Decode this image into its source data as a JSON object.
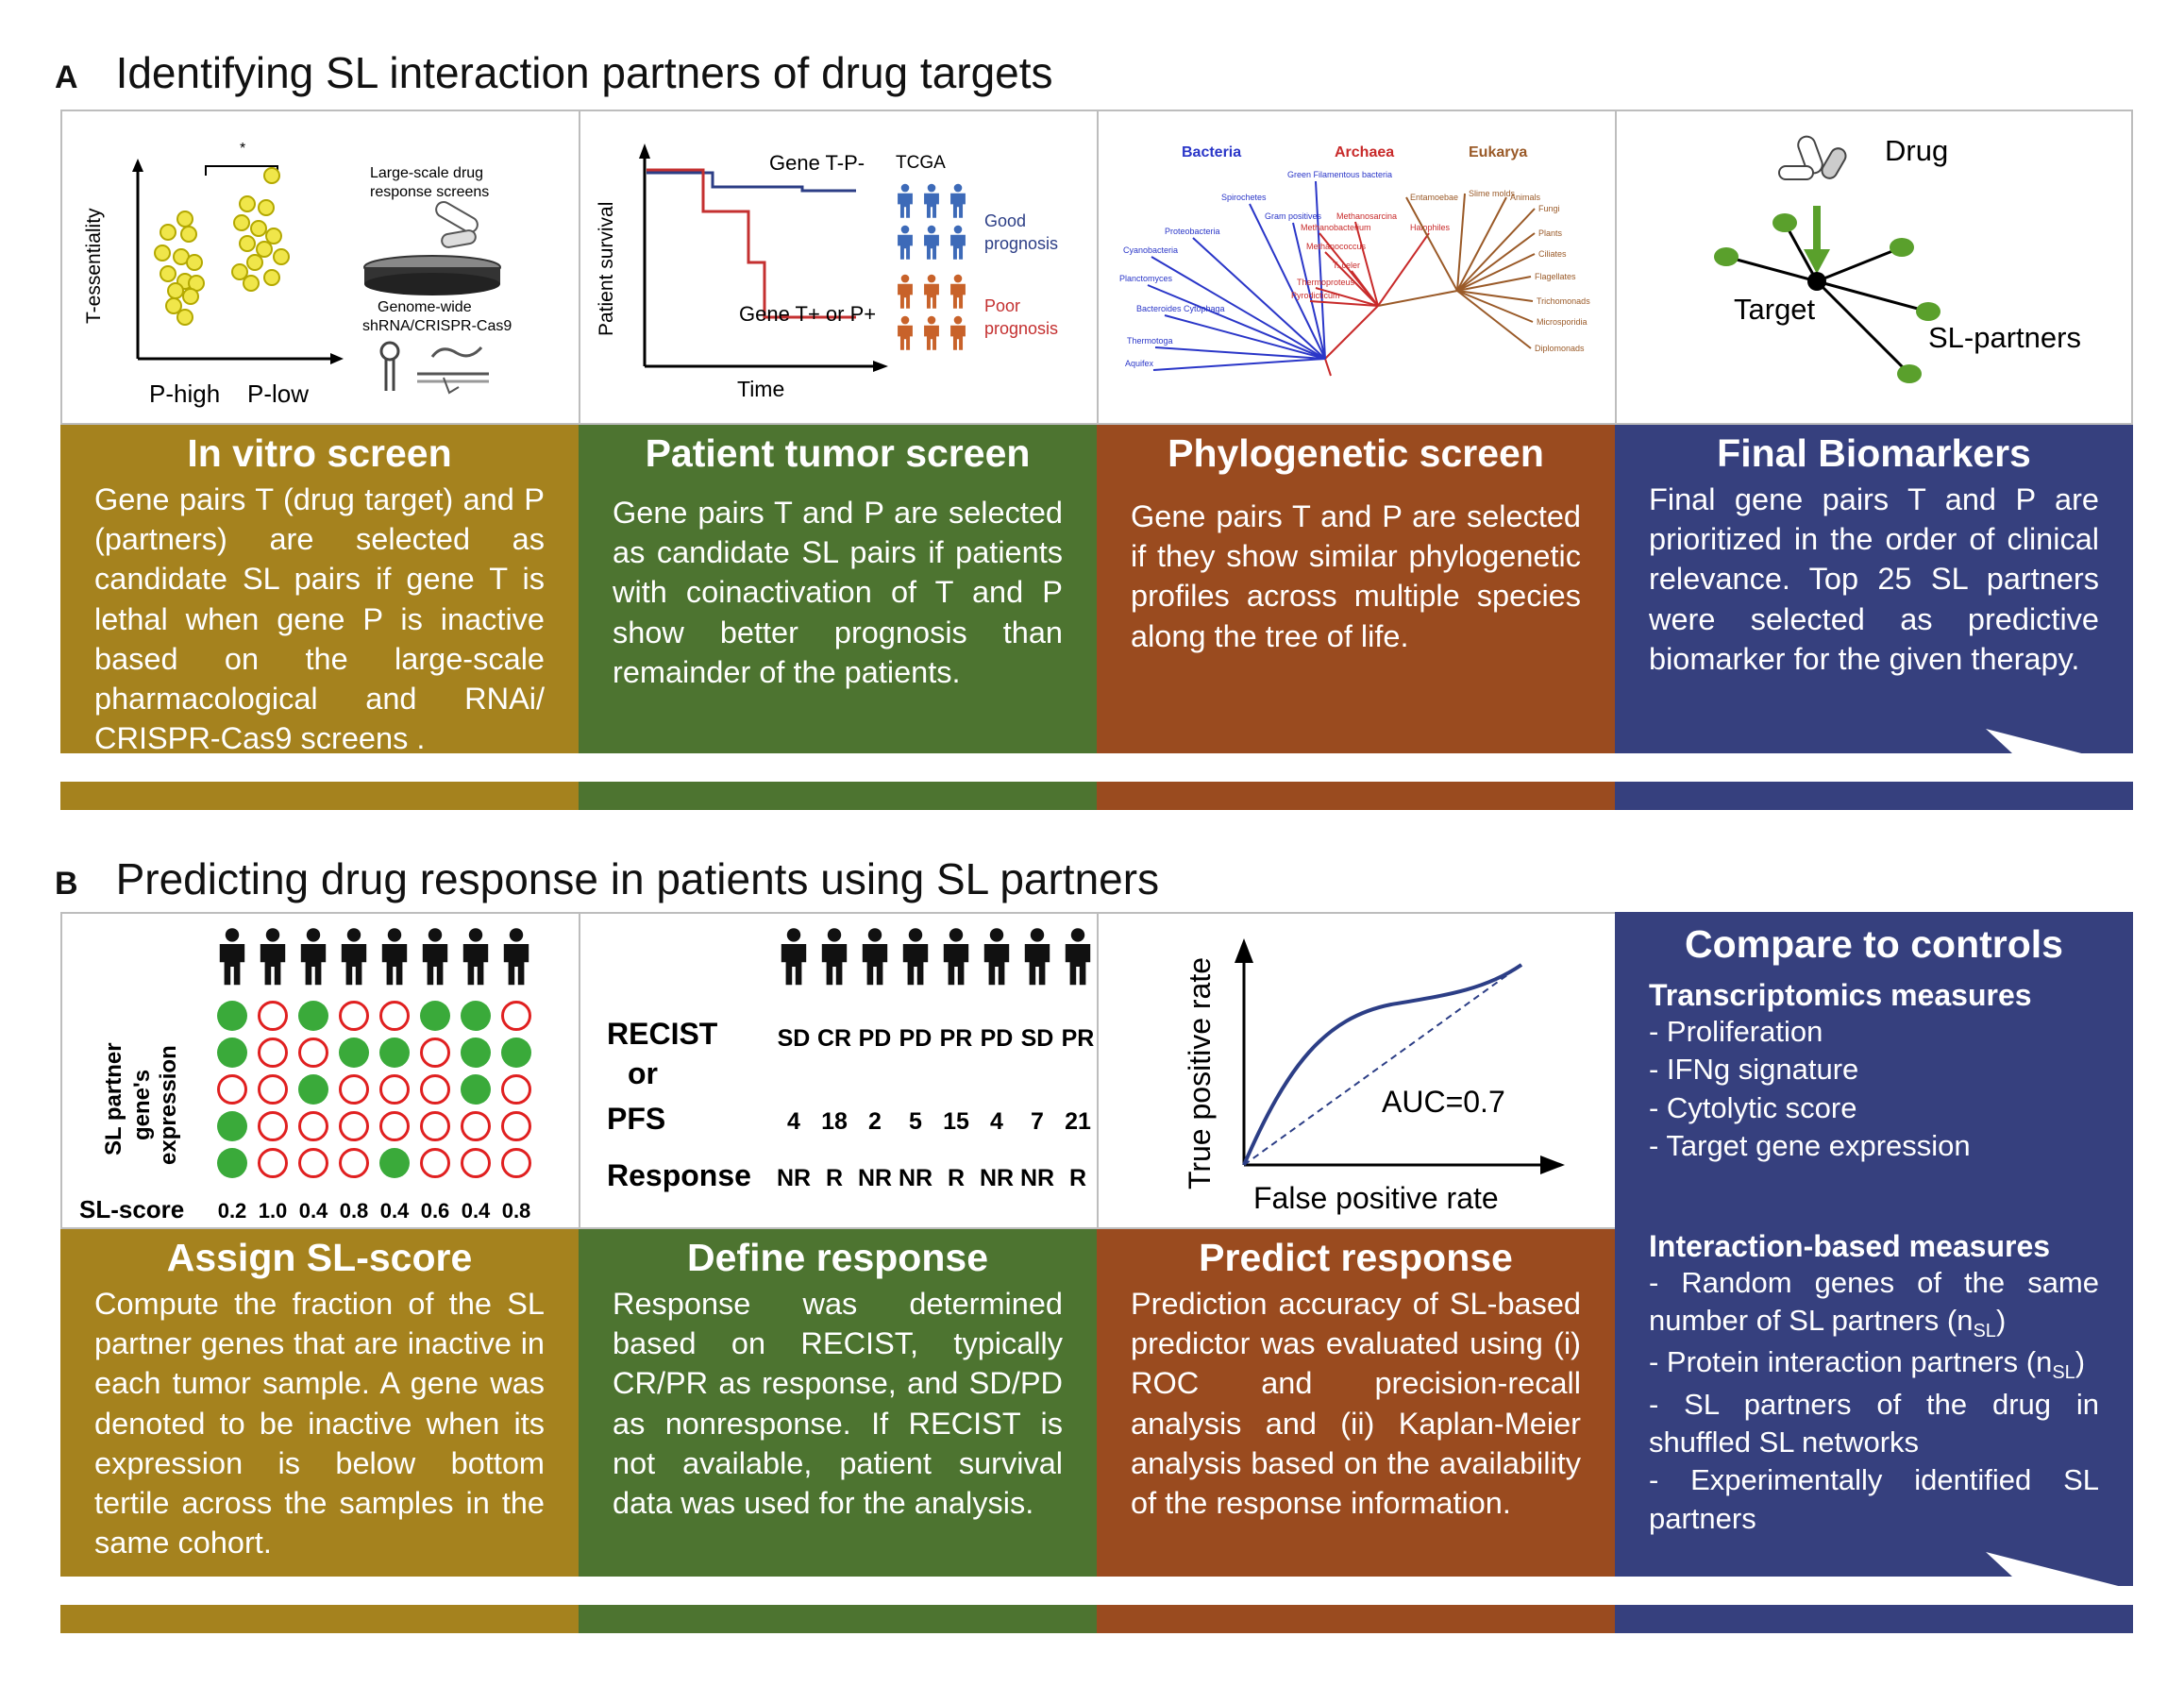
{
  "panel_a": {
    "letter": "A",
    "title": "Identifying SL interaction partners of drug targets",
    "fig1": {
      "ylabel": "T-essentiality",
      "x1": "P-high",
      "x2": "P-low",
      "star": "*",
      "screen_label_1": "Large-scale drug",
      "screen_label_2": "response screens",
      "genome_1": "Genome-wide",
      "genome_2": "shRNA/CRISPR-Cas9"
    },
    "fig2": {
      "ylabel": "Patient survival",
      "xlabel": "Time",
      "curve1": "Gene T-P-",
      "curve2": "Gene T+ or P+",
      "tcga": "TCGA",
      "good_1": "Good",
      "good_2": "prognosis",
      "poor_1": "Poor",
      "poor_2": "prognosis"
    },
    "fig3": {
      "bacteria": "Bacteria",
      "archaea": "Archaea",
      "eukarya": "Eukarya",
      "bacteria_taxa": [
        "Green Filamentous bacteria",
        "Spirochetes",
        "Gram positives",
        "Proteobacteria",
        "Cyanobacteria",
        "Planctomyces",
        "Bacteroides Cytophaga",
        "Thermotoga",
        "Aquifex"
      ],
      "archaea_taxa": [
        "Methanosarcina",
        "Methanobacterium",
        "Halophiles",
        "Methanococcus",
        "T. celer",
        "Thermoproteus",
        "Pyrodicticum"
      ],
      "eukarya_taxa": [
        "Entamoebae",
        "Slime molds",
        "Animals",
        "Fungi",
        "Plants",
        "Ciliates",
        "Flagellates",
        "Trichomonads",
        "Microsporidia",
        "Diplomonads"
      ]
    },
    "fig4": {
      "drug": "Drug",
      "target": "Target",
      "partners": "SL-partners"
    },
    "boxes": [
      {
        "title": "In vitro screen",
        "text": "Gene pairs T (drug target) and P (partners) are selected as candidate SL pairs if gene T is lethal when gene P is inactive based on the large-scale pharmacological and RNAi/ CRISPR-Cas9 screens ."
      },
      {
        "title": "Patient tumor screen",
        "text": "Gene pairs T and P are selected as candidate SL pairs if patients with coinactivation of T and P show better prognosis than remainder of the patients."
      },
      {
        "title": "Phylogenetic screen",
        "text": "Gene pairs T and P are selected if they show similar phylogenetic profiles across multiple species along the tree of life."
      },
      {
        "title": "Final Biomarkers",
        "text": "Final gene pairs T and P are prioritized in the order of clinical relevance. Top 25 SL partners were selected as predictive biomarker for the given therapy."
      }
    ]
  },
  "panel_b": {
    "letter": "B",
    "title": "Predicting drug response in patients using SL partners",
    "fig1": {
      "ylabel_1": "SL partner",
      "ylabel_2": "gene's",
      "ylabel_3": "expression",
      "score_label": "SL-score",
      "scores": [
        "0.2",
        "1.0",
        "0.4",
        "0.8",
        "0.4",
        "0.6",
        "0.4",
        "0.8"
      ],
      "grid": [
        [
          1,
          0,
          1,
          0,
          0,
          1,
          1,
          0
        ],
        [
          1,
          0,
          0,
          1,
          1,
          0,
          1,
          1
        ],
        [
          0,
          0,
          1,
          0,
          0,
          0,
          1,
          0
        ],
        [
          1,
          0,
          0,
          0,
          0,
          0,
          0,
          0
        ],
        [
          1,
          0,
          0,
          0,
          1,
          0,
          0,
          0
        ]
      ]
    },
    "fig2": {
      "recist_label_1": "RECIST",
      "recist_label_2": "or",
      "pfs_label": "PFS",
      "response_label": "Response",
      "recist": [
        "SD",
        "CR",
        "PD",
        "PD",
        "PR",
        "PD",
        "SD",
        "PR"
      ],
      "pfs": [
        "4",
        "18",
        "2",
        "5",
        "15",
        "4",
        "7",
        "21"
      ],
      "response": [
        "NR",
        "R",
        "NR",
        "NR",
        "R",
        "NR",
        "NR",
        "R"
      ]
    },
    "fig3": {
      "ylabel": "True positive rate",
      "xlabel": "False positive rate",
      "auc": "AUC=0.7"
    },
    "boxes": [
      {
        "title": "Assign SL-score",
        "text": "Compute the fraction of the SL partner genes that are inactive in each tumor sample. A gene was denoted to be inactive when its expression is below bottom tertile across the samples in the same cohort."
      },
      {
        "title": "Define response",
        "text": "Response was determined based on RECIST, typically CR/PR as response, and SD/PD as nonresponse. If RECIST is not available, patient survival data was used for the analysis."
      },
      {
        "title": "Predict response",
        "text": "Prediction accuracy of SL-based predictor was evaluated using (i) ROC and precision-recall analysis and (ii) Kaplan-Meier analysis based on the availability of the response information."
      }
    ],
    "controls": {
      "title": "Compare to controls",
      "trans_title": "Transcriptomics measures",
      "trans_items": [
        "- Proliferation",
        "- IFNg signature",
        "- Cytolytic score",
        "- Target gene expression"
      ],
      "inter_title": "Interaction-based measures",
      "inter_1": "- Random genes of the same number of SL partners (n",
      "inter_2": "- Protein interaction partners (n",
      "sub": "SL",
      "close": ")",
      "inter_3": "- SL partners of the drug in shuffled SL networks",
      "inter_4": "- Experimentally identified SL partners"
    }
  },
  "colors": {
    "gold": "#a5821e",
    "green": "#4d7430",
    "rust": "#9a4b1f",
    "navy": "#36407e",
    "dot_yellow": "#f0e64a",
    "dot_green": "#3aaa3a",
    "ring_red": "#e02020"
  }
}
